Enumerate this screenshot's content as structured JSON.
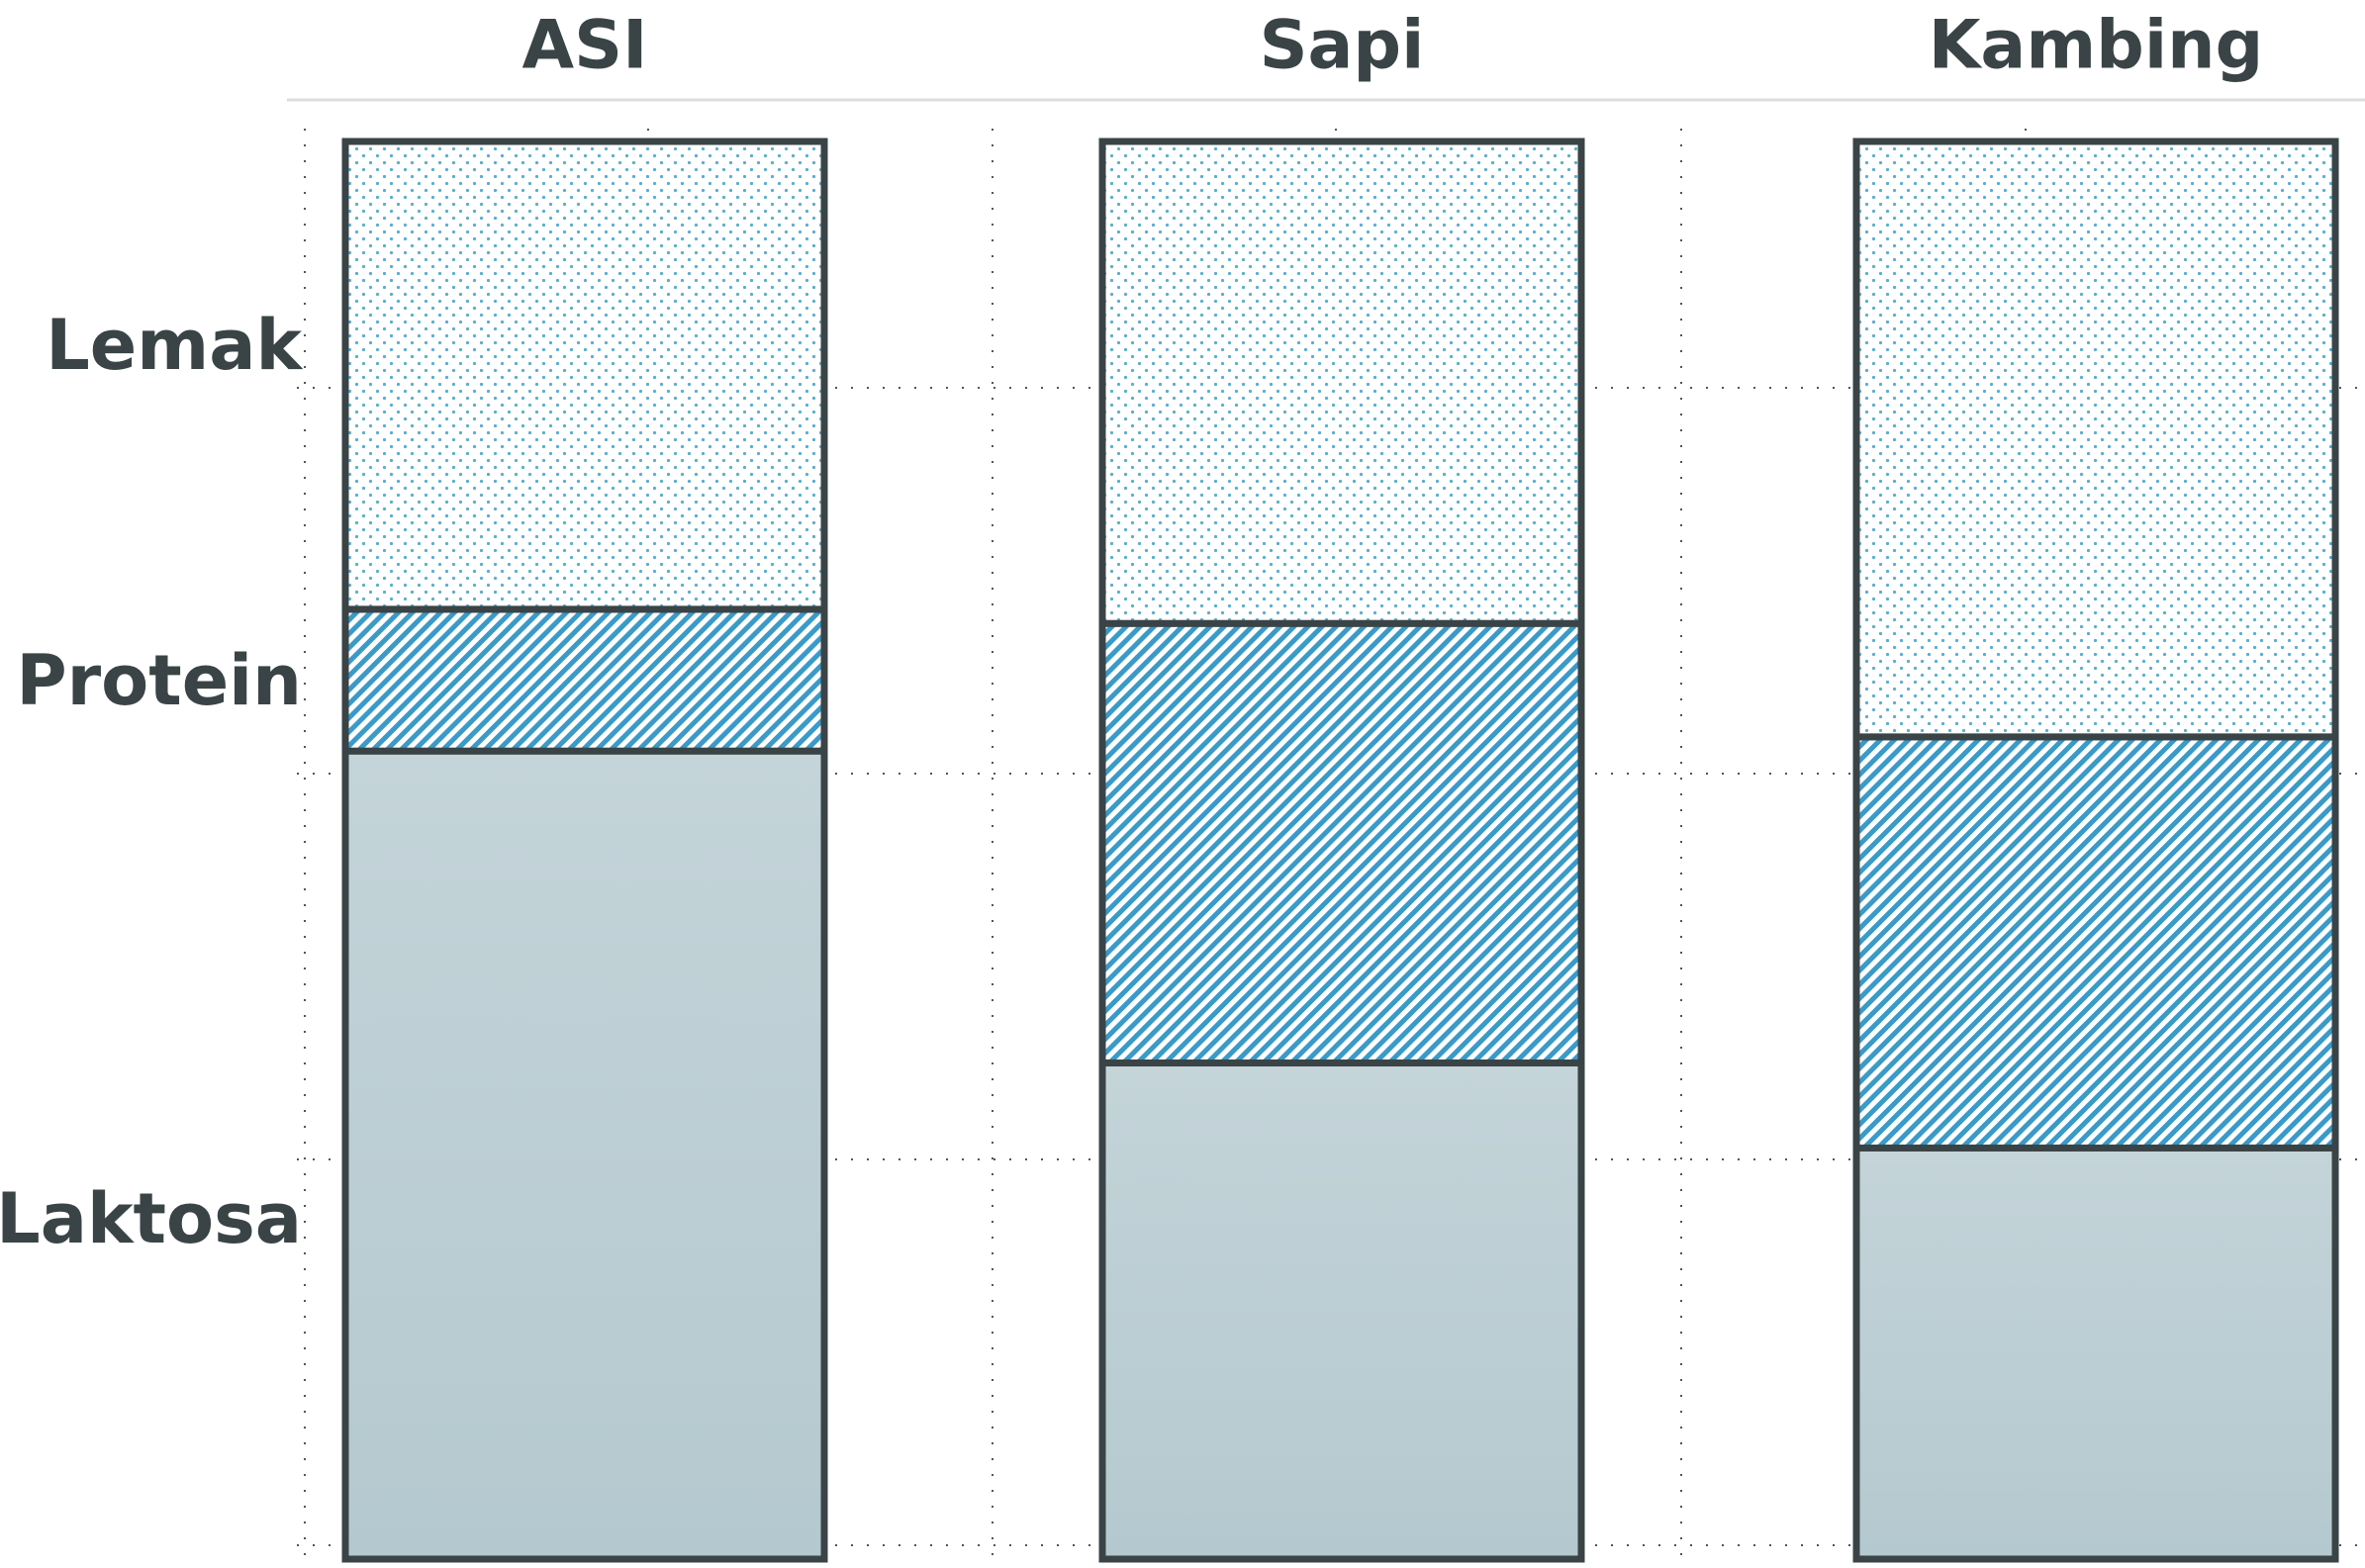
{
  "chart_data": {
    "type": "stacked-bar",
    "categories": [
      "ASI",
      "Sapi",
      "Kambing"
    ],
    "ylim": [
      0,
      100
    ],
    "series": [
      {
        "name": "Laktosa",
        "color": "#b4c9cf",
        "values": [
          57,
          35,
          29
        ]
      },
      {
        "name": "Protein",
        "color": "#3a9ac8",
        "values": [
          10,
          31,
          29
        ]
      },
      {
        "name": "Lemak",
        "color": "#5aaed0",
        "values": [
          33,
          34,
          42
        ]
      }
    ]
  }
}
